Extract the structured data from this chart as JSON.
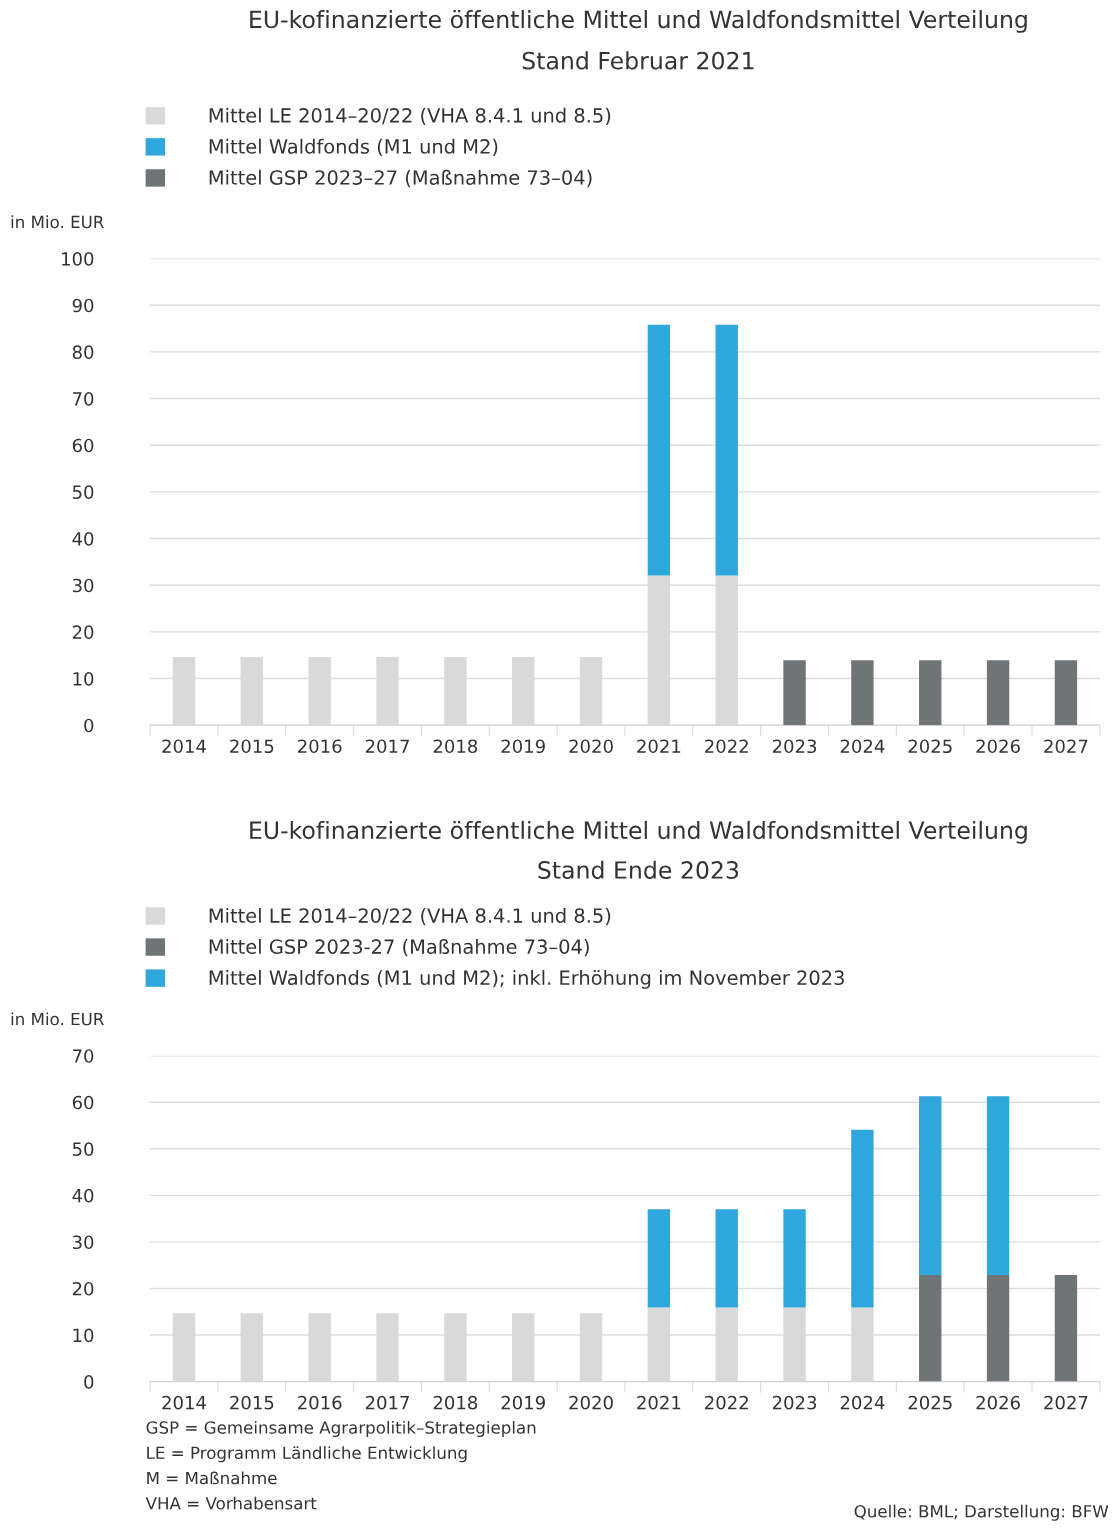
{
  "chart_data": [
    {
      "type": "bar",
      "stacked": true,
      "title": "EU-kofinanzierte öffentliche Mittel und Waldfondsmittel Verteilung",
      "subtitle": "Stand Februar 2021",
      "ylabel": "in Mio. EUR",
      "categories": [
        "2014",
        "2015",
        "2016",
        "2017",
        "2018",
        "2019",
        "2020",
        "2021",
        "2022",
        "2023",
        "2024",
        "2025",
        "2026",
        "2027"
      ],
      "series": [
        {
          "name": "Mittel LE 2014–20/22 (VHA 8.4.1 und 8.5)",
          "color": "#d9d9d9",
          "values": [
            14.6,
            14.6,
            14.6,
            14.6,
            14.6,
            14.6,
            14.6,
            32.1,
            32.1,
            null,
            null,
            null,
            null,
            null
          ]
        },
        {
          "name": "Mittel Waldfonds (M1 und M2)",
          "color": "#2fa7dc",
          "values": [
            null,
            null,
            null,
            null,
            null,
            null,
            null,
            53.7,
            53.7,
            null,
            null,
            null,
            null,
            null
          ]
        },
        {
          "name": "Mittel GSP 2023–27 (Maßnahme 73–04)",
          "color": "#6f7477",
          "values": [
            null,
            null,
            null,
            null,
            null,
            null,
            null,
            null,
            null,
            13.9,
            13.9,
            13.9,
            13.9,
            13.9
          ]
        }
      ],
      "ylim": [
        0,
        100
      ],
      "yticks": [
        0,
        10,
        20,
        30,
        40,
        50,
        60,
        70,
        80,
        90,
        100
      ],
      "grid": "y",
      "legend": "top"
    },
    {
      "type": "bar",
      "stacked": true,
      "title": "EU-kofinanzierte öffentliche Mittel und Waldfondsmittel Verteilung",
      "subtitle": "Stand Ende 2023",
      "ylabel": "in Mio. EUR",
      "categories": [
        "2014",
        "2015",
        "2016",
        "2017",
        "2018",
        "2019",
        "2020",
        "2021",
        "2022",
        "2023",
        "2024",
        "2025",
        "2026",
        "2027"
      ],
      "series": [
        {
          "name": "Mittel LE 2014–20/22 (VHA 8.4.1 und 8.5)",
          "color": "#d9d9d9",
          "values": [
            14.7,
            14.7,
            14.7,
            14.7,
            14.7,
            14.7,
            14.7,
            15.9,
            15.9,
            15.9,
            15.9,
            null,
            null,
            null
          ]
        },
        {
          "name": "Mittel GSP 2023-27 (Maßnahme 73–04)",
          "color": "#6f7477",
          "values": [
            null,
            null,
            null,
            null,
            null,
            null,
            null,
            null,
            null,
            null,
            null,
            22.9,
            22.9,
            22.9
          ]
        },
        {
          "name": "Mittel Waldfonds (M1 und M2); inkl. Erhöhung im November 2023",
          "color": "#2fa7dc",
          "values": [
            null,
            null,
            null,
            null,
            null,
            null,
            null,
            21.1,
            21.1,
            21.1,
            38.2,
            38.4,
            38.4,
            null
          ]
        }
      ],
      "ylim": [
        0,
        70
      ],
      "yticks": [
        0,
        10,
        20,
        30,
        40,
        50,
        60,
        70
      ],
      "grid": "y",
      "legend": "top",
      "annotations": [
        "GSP = Gemeinsame Agrarpolitik–Strategieplan",
        "LE = Programm Ländliche Entwicklung",
        "M = Maßnahme",
        "VHA = Vorhabensart",
        "Quelle: BML; Darstellung: BFW"
      ]
    }
  ]
}
